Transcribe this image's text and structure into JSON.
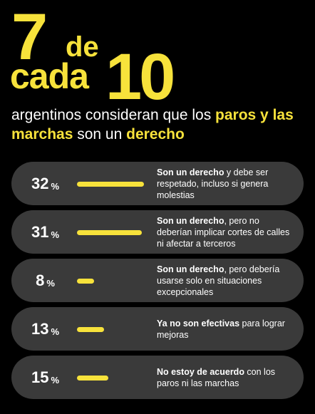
{
  "headline": {
    "number_a": "7",
    "word_de": "de",
    "word_cada": "cada",
    "number_b": "10"
  },
  "subtitle": {
    "part1": "argentinos consideran que los ",
    "hl1": "paros y las marchas",
    "part2": " son un ",
    "hl2": "derecho"
  },
  "accent_color": "#f7e23b",
  "percent_sign": "%",
  "chart_data": {
    "type": "bar",
    "orientation": "horizontal",
    "categories": [
      "Son un derecho y debe ser respetado, incluso si genera molestias",
      "Son un derecho, pero no deberían implicar cortes de calles ni afectar a terceros",
      "Son un derecho, pero debería usarse solo en situaciones excepcionales",
      "Ya no son efectivas para lograr mejoras",
      "No estoy de acuerdo con los paros ni las marchas"
    ],
    "values": [
      32,
      31,
      8,
      13,
      15
    ],
    "unit": "%"
  },
  "rows": [
    {
      "value": "32",
      "bold": "Son un derecho",
      "rest": " y debe ser respetado, incluso si genera molestias"
    },
    {
      "value": "31",
      "bold": "Son un derecho",
      "rest": ", pero no deberían implicar cortes de calles ni afectar a terceros"
    },
    {
      "value": "8",
      "bold": "Son un derecho",
      "rest": ", pero debería usarse solo en situaciones excepcionales"
    },
    {
      "value": "13",
      "bold": "Ya no son efectivas",
      "rest": " para lograr mejoras"
    },
    {
      "value": "15",
      "bold": "No estoy de acuerdo",
      "rest": " con los paros ni las marchas"
    }
  ]
}
